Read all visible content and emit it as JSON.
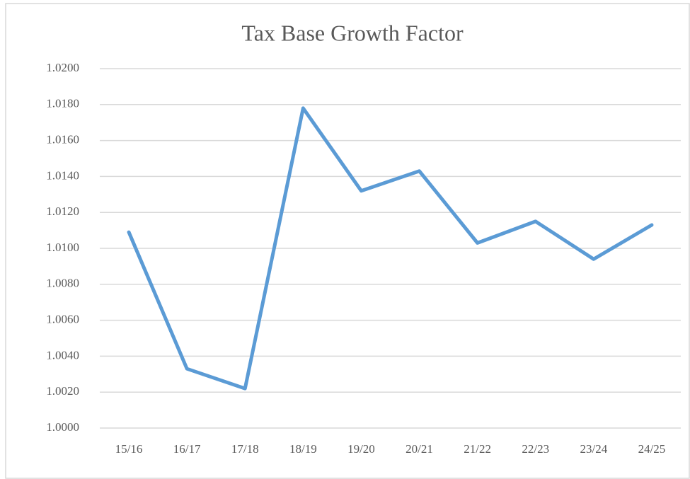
{
  "chart_data": {
    "type": "line",
    "title": "Tax Base Growth Factor",
    "categories": [
      "15/16",
      "16/17",
      "17/18",
      "18/19",
      "19/20",
      "20/21",
      "21/22",
      "22/23",
      "23/24",
      "24/25"
    ],
    "values": [
      1.0109,
      1.0033,
      1.0022,
      1.0178,
      1.0132,
      1.0143,
      1.0103,
      1.0115,
      1.0094,
      1.0113
    ],
    "color": "#5b9bd5",
    "ylim": [
      1.0,
      1.02
    ],
    "yticks": [
      {
        "value": 1.0,
        "label": "1.0000"
      },
      {
        "value": 1.002,
        "label": "1.0020"
      },
      {
        "value": 1.004,
        "label": "1.0040"
      },
      {
        "value": 1.006,
        "label": "1.0060"
      },
      {
        "value": 1.008,
        "label": "1.0080"
      },
      {
        "value": 1.01,
        "label": "1.0100"
      },
      {
        "value": 1.012,
        "label": "1.0120"
      },
      {
        "value": 1.014,
        "label": "1.0140"
      },
      {
        "value": 1.016,
        "label": "1.0160"
      },
      {
        "value": 1.018,
        "label": "1.0180"
      },
      {
        "value": 1.02,
        "label": "1.0200"
      }
    ],
    "grid": true
  }
}
